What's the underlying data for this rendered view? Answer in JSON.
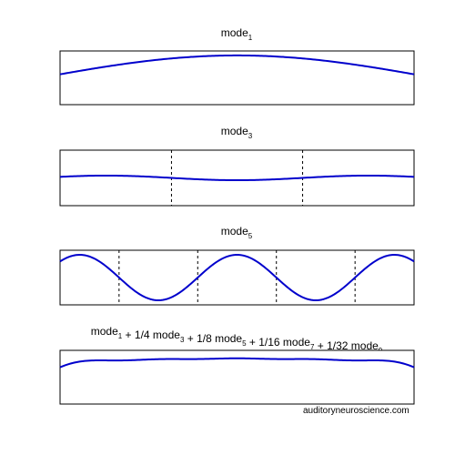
{
  "chart_data": [
    {
      "type": "line",
      "title": {
        "base": "mode",
        "sub": "1",
        "rest": []
      },
      "series": [
        {
          "values_fn": "sin(pi*x)",
          "x_range": [
            0.05,
            0.95
          ],
          "ylim": [
            -1.2,
            1.2
          ]
        }
      ],
      "grid": false,
      "color": "#0000cc"
    },
    {
      "type": "line",
      "title": {
        "base": "mode",
        "sub": "3",
        "rest": []
      },
      "series": [
        {
          "values_fn": "sin(3*pi*x)",
          "x_range": [
            0.05,
            0.95
          ],
          "ylim": [
            -12,
            12
          ]
        }
      ],
      "nodes": [
        0.3333,
        0.6667
      ],
      "grid": false,
      "color": "#0000cc"
    },
    {
      "type": "line",
      "title": {
        "base": "mode",
        "sub": "5",
        "rest": []
      },
      "series": [
        {
          "values_fn": "sin(5*pi*x)",
          "x_range": [
            0.05,
            0.95
          ],
          "ylim": [
            -1.2,
            1.2
          ]
        }
      ],
      "nodes": [
        0.2,
        0.4,
        0.6,
        0.8
      ],
      "grid": false,
      "color": "#0000cc"
    },
    {
      "type": "line",
      "title": {
        "base": "mode",
        "sub": "1",
        "rest": [
          {
            "text": " + 1/4 mode",
            "sub": "3"
          },
          {
            "text": " + 1/8 mode",
            "sub": "5"
          },
          {
            "text": " + 1/16 mode",
            "sub": "7"
          },
          {
            "text": " + 1/32 mode",
            "sub": "9"
          }
        ]
      },
      "series": [
        {
          "values_fn": "sum",
          "x_range": [
            0.05,
            0.95
          ],
          "ylim": [
            -1.2,
            1.2
          ]
        }
      ],
      "grid": false,
      "color": "#0000cc"
    }
  ],
  "credit": "auditoryneuroscience.com"
}
